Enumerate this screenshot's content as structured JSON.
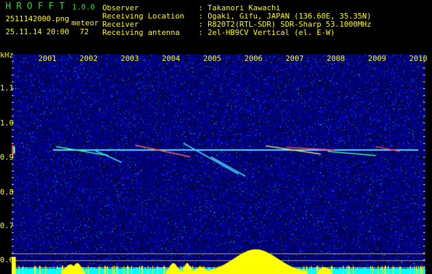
{
  "app": {
    "name": "H R O F F T",
    "version": "1.0.0"
  },
  "file": {
    "name": "2511142000.png",
    "datetime": "25.11.14 20:00"
  },
  "meteor": {
    "label": "meteor",
    "count": "72"
  },
  "info": [
    {
      "label": "Observer",
      "value": ": Takanori Kawachi"
    },
    {
      "label": "Receiving Location",
      "value": ": Ogaki, Gifu, JAPAN (136.60E, 35.35N)"
    },
    {
      "label": "Receiver",
      "value": ": R820T2(RTL-SDR) SDR-Sharp 53.1000MHz"
    },
    {
      "label": "Receiving antenna",
      "value": ": 2el-HB9CV Vertical (el. E-W)"
    }
  ],
  "axis": {
    "unit": "kHz",
    "y_ticks": [
      "1.1",
      "1.0",
      "0.9",
      "0.8",
      "0.7",
      "0.6"
    ],
    "x_ticks": [
      "2001",
      "2002",
      "2003",
      "2004",
      "2005",
      "2006",
      "2007",
      "2008",
      "2009",
      "2010"
    ]
  },
  "colors": {
    "text": "#ffff00",
    "title": "#22dd22",
    "background": "#00006a",
    "histogram": "#ffff00",
    "floor": "#00ffff"
  }
}
